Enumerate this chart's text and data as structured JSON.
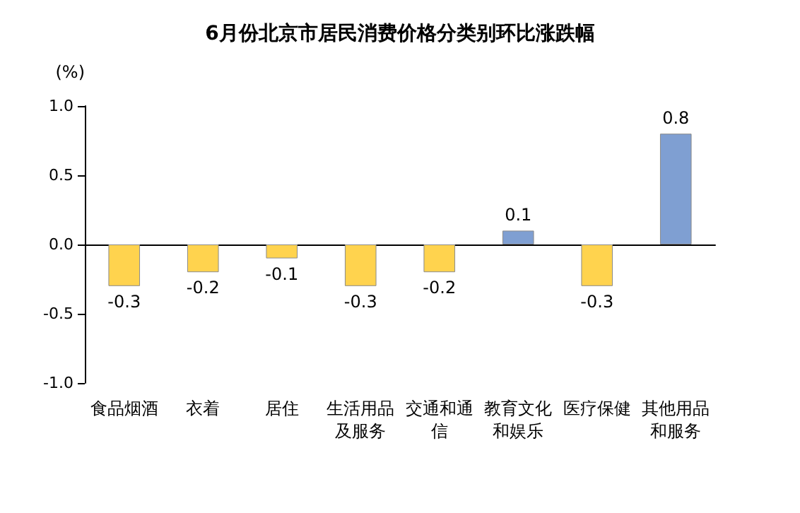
{
  "chart_data": {
    "type": "bar",
    "title": "6月份北京市居民消费价格分类别环比涨跌幅",
    "ylabel": "(%)",
    "categories": [
      "食品烟酒",
      "衣着",
      "居住",
      "生活用品及服务",
      "交通和通信",
      "教育文化和娱乐",
      "医疗保健",
      "其他用品和服务"
    ],
    "values": [
      -0.3,
      -0.2,
      -0.1,
      -0.3,
      -0.2,
      0.1,
      -0.3,
      0.8
    ],
    "colors": [
      "#ffd34e",
      "#ffd34e",
      "#ffd34e",
      "#ffd34e",
      "#ffd34e",
      "#7f9fd2",
      "#ffd34e",
      "#7f9fd2"
    ],
    "ylim": [
      -1.0,
      1.0
    ],
    "yticks": [
      {
        "value": -1.0,
        "label": "-1.0"
      },
      {
        "value": -0.5,
        "label": "-0.5"
      },
      {
        "value": 0,
        "label": "0.0"
      },
      {
        "value": 0.5,
        "label": "0.5"
      },
      {
        "value": 1.0,
        "label": "1.0"
      }
    ],
    "data_labels": true
  }
}
